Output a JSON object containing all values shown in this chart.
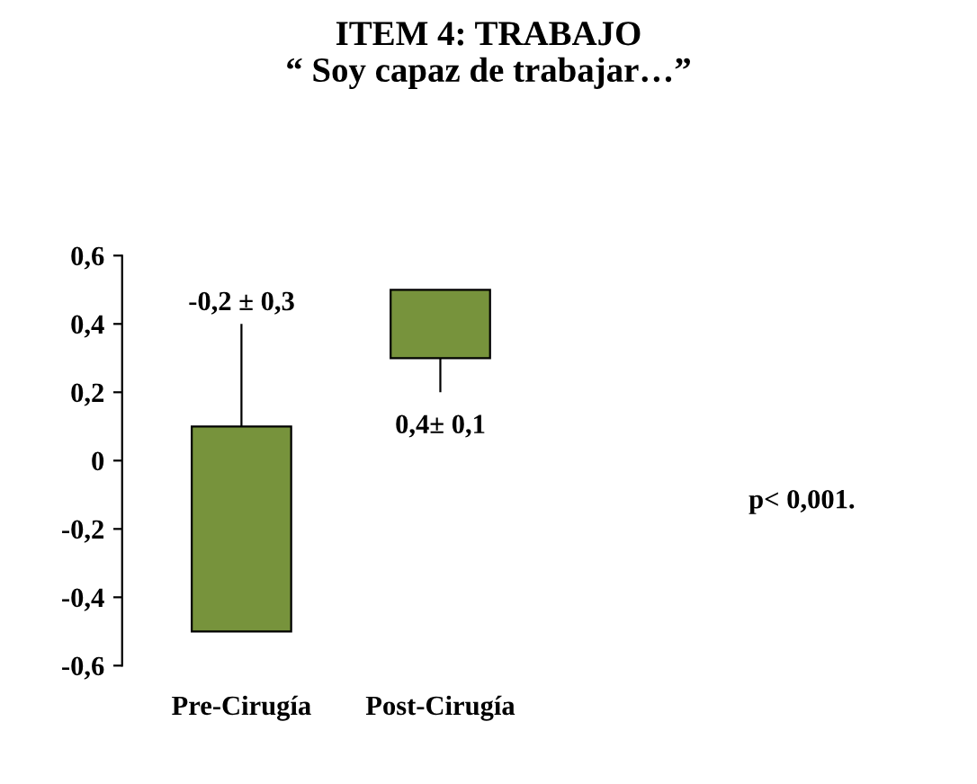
{
  "chart_data": {
    "type": "bar",
    "title": "ITEM 4: TRABAJO\n“ Soy capaz de trabajar…”",
    "categories": [
      "Pre-Cirugía",
      "Post-Cirugía",
      null,
      null
    ],
    "values": [
      0.6,
      0.2,
      null,
      null
    ],
    "base": [
      -0.5,
      0.3,
      null,
      null
    ],
    "errors": [
      [
        0.1,
        0.4
      ],
      [
        0.2,
        0.3
      ],
      null,
      null
    ],
    "color": "#77933c",
    "ylim": [
      -0.6,
      0.6
    ],
    "yticks": [
      {
        "value": -0.6,
        "label": "-0,6"
      },
      {
        "value": -0.4,
        "label": "-0,4"
      },
      {
        "value": -0.2,
        "label": "-0,2"
      },
      0,
      {
        "value": 0.2,
        "label": "0,2"
      },
      {
        "value": 0.4,
        "label": "0,4"
      },
      {
        "value": 0.6,
        "label": "0,6"
      }
    ],
    "annotations": [
      "-0,2 ± 0,3",
      "0,4± 0,1",
      "p< 0,001."
    ],
    "grid": false
  }
}
